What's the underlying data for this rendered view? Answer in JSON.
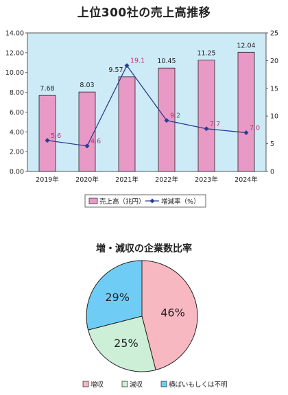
{
  "chart_data": [
    {
      "type": "bar+line",
      "title": "上位300社の売上高推移",
      "categories": [
        "2019年",
        "2020年",
        "2021年",
        "2022年",
        "2023年",
        "2024年"
      ],
      "series": [
        {
          "name": "売上高（兆円）",
          "type": "bar",
          "axis": "left",
          "color": "#e899c6",
          "values": [
            7.68,
            8.03,
            9.57,
            10.45,
            11.25,
            12.04
          ],
          "labels": [
            "7.68",
            "8.03",
            "9.57",
            "10.45",
            "11.25",
            "12.04"
          ]
        },
        {
          "name": "増減率（%）",
          "type": "line",
          "axis": "right",
          "color": "#2a3c8f",
          "values": [
            5.6,
            4.6,
            19.1,
            9.2,
            7.7,
            7.0
          ],
          "labels": [
            "5.6",
            "4.6",
            "19.1",
            "9.2",
            "7.7",
            "7.0"
          ]
        }
      ],
      "y_left": {
        "min": 0,
        "max": 14,
        "step": 2,
        "tick_labels": [
          "0.00",
          "2.00",
          "4.00",
          "6.00",
          "8.00",
          "10.00",
          "12.00",
          "14.00"
        ]
      },
      "y_right": {
        "min": 0,
        "max": 25,
        "step": 5,
        "tick_labels": [
          "0",
          "5",
          "10",
          "15",
          "20",
          "25"
        ]
      },
      "plot_bg": "#cdeaf7",
      "legend": "bottom",
      "grid": false
    },
    {
      "type": "pie",
      "title": "増・減収の企業数比率",
      "slices": [
        {
          "name": "増収",
          "value": 46,
          "label": "46%",
          "color": "#f7b8c2"
        },
        {
          "name": "減収",
          "value": 25,
          "label": "25%",
          "color": "#cdeed7"
        },
        {
          "name": "横ばいもしくは不明",
          "value": 29,
          "label": "29%",
          "color": "#6fcdf5"
        }
      ],
      "legend": "bottom"
    }
  ]
}
